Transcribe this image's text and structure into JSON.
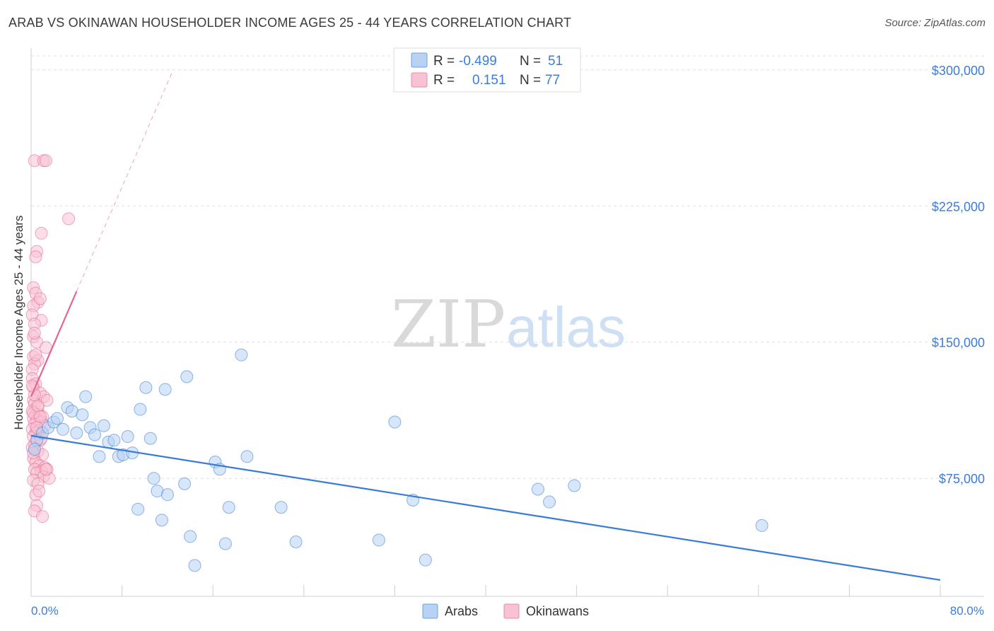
{
  "title": "ARAB VS OKINAWAN HOUSEHOLDER INCOME AGES 25 - 44 YEARS CORRELATION CHART",
  "source": "Source: ZipAtlas.com",
  "watermark": {
    "zip": "ZIP",
    "atlas": "atlas"
  },
  "legend": {
    "rows": [
      {
        "r_label": "R =",
        "r_value": "-0.499",
        "n_label": "N =",
        "n_value": "51",
        "color": "#b7d2f3"
      },
      {
        "r_label": "R =",
        "r_value": "0.151",
        "n_label": "N =",
        "n_value": "77",
        "color": "#f7c3d3"
      }
    ]
  },
  "bottom_legend": [
    {
      "label": "Arabs",
      "color": "#b7d2f3"
    },
    {
      "label": "Okinawans",
      "color": "#f7c3d3"
    }
  ],
  "chart_data": {
    "type": "scatter",
    "title": "ARAB VS OKINAWAN HOUSEHOLDER INCOME AGES 25 - 44 YEARS CORRELATION CHART",
    "xlabel": "",
    "ylabel": "Householder Income Ages 25 - 44 years",
    "xlim": [
      0,
      80
    ],
    "ylim": [
      10000,
      312000
    ],
    "x_tick_labels": {
      "min": "0.0%",
      "max": "80.0%"
    },
    "y_ticks": [
      {
        "value": 75000,
        "label": "$75,000"
      },
      {
        "value": 150000,
        "label": "$150,000"
      },
      {
        "value": 225000,
        "label": "$225,000"
      },
      {
        "value": 300000,
        "label": "$300,000"
      }
    ],
    "series": [
      {
        "name": "Arabs",
        "color": "#3a7bd5",
        "fill": "#b7d2f3",
        "trend": {
          "x1": 0,
          "y1": 98500,
          "x2": 80,
          "y2": 19000
        },
        "points": [
          [
            0.5,
            96000
          ],
          [
            1.0,
            100000
          ],
          [
            1.5,
            103000
          ],
          [
            2.0,
            106000
          ],
          [
            2.3,
            108000
          ],
          [
            2.8,
            102000
          ],
          [
            3.2,
            114000
          ],
          [
            3.6,
            112000
          ],
          [
            4.0,
            100000
          ],
          [
            4.5,
            110000
          ],
          [
            4.8,
            120000
          ],
          [
            5.2,
            103000
          ],
          [
            5.6,
            99000
          ],
          [
            6.0,
            87000
          ],
          [
            6.4,
            104000
          ],
          [
            6.8,
            95000
          ],
          [
            7.3,
            96000
          ],
          [
            7.7,
            87000
          ],
          [
            8.1,
            88000
          ],
          [
            8.5,
            98000
          ],
          [
            8.9,
            89000
          ],
          [
            9.6,
            113000
          ],
          [
            10.1,
            125000
          ],
          [
            10.5,
            97000
          ],
          [
            10.8,
            75000
          ],
          [
            11.1,
            68000
          ],
          [
            11.5,
            52000
          ],
          [
            11.8,
            124000
          ],
          [
            12.0,
            66000
          ],
          [
            9.4,
            58000
          ],
          [
            13.5,
            72000
          ],
          [
            13.7,
            131000
          ],
          [
            14.0,
            43000
          ],
          [
            14.4,
            27000
          ],
          [
            16.2,
            84000
          ],
          [
            16.6,
            80000
          ],
          [
            17.1,
            39000
          ],
          [
            17.4,
            59000
          ],
          [
            18.5,
            143000
          ],
          [
            19.0,
            87000
          ],
          [
            22.0,
            59000
          ],
          [
            23.3,
            40000
          ],
          [
            30.6,
            41000
          ],
          [
            32.0,
            106000
          ],
          [
            33.6,
            63000
          ],
          [
            34.7,
            30000
          ],
          [
            44.6,
            69000
          ],
          [
            45.6,
            62000
          ],
          [
            47.8,
            71000
          ],
          [
            64.3,
            49000
          ],
          [
            0.3,
            91000
          ]
        ]
      },
      {
        "name": "Okinawans",
        "color": "#e8648f",
        "fill": "#f7c3d3",
        "trend_solid": {
          "x1": 0,
          "y1": 120000,
          "x2": 4.0,
          "y2": 178000
        },
        "trend_dashed": {
          "x1": 4.0,
          "y1": 178000,
          "x2": 12.5,
          "y2": 300000
        },
        "points": [
          [
            0.3,
            250000
          ],
          [
            1.1,
            250000
          ],
          [
            1.3,
            250000
          ],
          [
            3.3,
            218000
          ],
          [
            0.9,
            210000
          ],
          [
            0.5,
            200000
          ],
          [
            0.4,
            197000
          ],
          [
            0.2,
            180000
          ],
          [
            0.4,
            177000
          ],
          [
            0.6,
            172000
          ],
          [
            0.2,
            170000
          ],
          [
            0.1,
            165000
          ],
          [
            0.9,
            162000
          ],
          [
            0.3,
            160000
          ],
          [
            0.2,
            153000
          ],
          [
            0.5,
            150000
          ],
          [
            1.3,
            147000
          ],
          [
            0.2,
            142000
          ],
          [
            0.6,
            140000
          ],
          [
            0.3,
            138000
          ],
          [
            0.1,
            135000
          ],
          [
            0.1,
            130000
          ],
          [
            0.4,
            127000
          ],
          [
            0.2,
            125000
          ],
          [
            0.8,
            122000
          ],
          [
            1.1,
            120000
          ],
          [
            0.2,
            118000
          ],
          [
            1.4,
            118000
          ],
          [
            0.3,
            116000
          ],
          [
            0.6,
            114000
          ],
          [
            0.1,
            112000
          ],
          [
            0.4,
            110000
          ],
          [
            0.7,
            110000
          ],
          [
            1.0,
            109000
          ],
          [
            0.2,
            108000
          ],
          [
            0.5,
            107000
          ],
          [
            0.9,
            106000
          ],
          [
            0.3,
            105000
          ],
          [
            1.2,
            104000
          ],
          [
            0.1,
            102000
          ],
          [
            0.6,
            101000
          ],
          [
            0.4,
            100000
          ],
          [
            0.2,
            98000
          ],
          [
            0.8,
            96000
          ],
          [
            0.3,
            94000
          ],
          [
            0.1,
            92000
          ],
          [
            0.6,
            90000
          ],
          [
            1.0,
            88000
          ],
          [
            0.2,
            86000
          ],
          [
            0.4,
            84000
          ],
          [
            0.7,
            82000
          ],
          [
            1.2,
            81000
          ],
          [
            0.3,
            80000
          ],
          [
            0.9,
            79000
          ],
          [
            1.4,
            80000
          ],
          [
            0.5,
            78000
          ],
          [
            1.1,
            76000
          ],
          [
            1.6,
            75000
          ],
          [
            0.2,
            74000
          ],
          [
            0.6,
            72000
          ],
          [
            0.4,
            66000
          ],
          [
            0.5,
            60000
          ],
          [
            0.3,
            57000
          ],
          [
            1.0,
            54000
          ],
          [
            0.2,
            111000
          ],
          [
            0.6,
            115000
          ],
          [
            0.3,
            121000
          ],
          [
            0.8,
            109000
          ],
          [
            0.5,
            103000
          ],
          [
            0.9,
            97000
          ],
          [
            0.2,
            89000
          ],
          [
            1.3,
            80000
          ],
          [
            0.7,
            68000
          ],
          [
            0.4,
            143000
          ],
          [
            0.3,
            155000
          ],
          [
            0.8,
            174000
          ],
          [
            0.1,
            126000
          ]
        ]
      }
    ]
  }
}
